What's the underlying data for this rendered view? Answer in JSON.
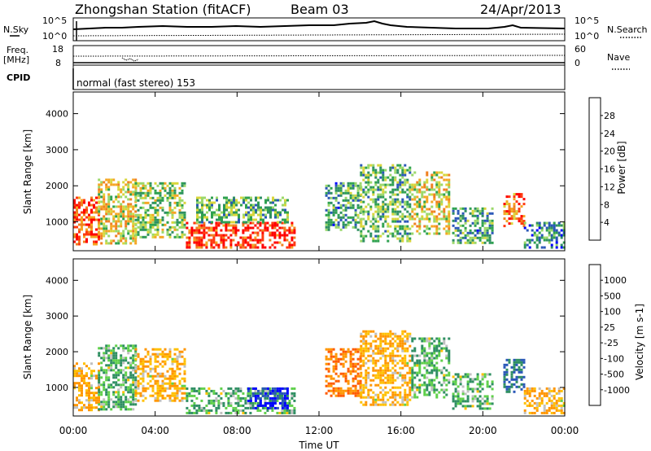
{
  "header": {
    "station": "Zhongshan Station (fitACF)",
    "beam": "Beam 03",
    "date": "24/Apr/2013"
  },
  "strip_panels": {
    "nsky": {
      "left_label": "N.Sky",
      "left_ticks": [
        "10^5",
        "10^0"
      ],
      "right_label": "N.Search",
      "right_ticks": [
        "10^5",
        "10^0"
      ]
    },
    "freq": {
      "left_label_1": "Freq.",
      "left_label_2": "[MHz]",
      "left_ticks": [
        "18",
        "8"
      ],
      "right_label": "Nave",
      "right_ticks": [
        "60",
        "0"
      ]
    },
    "cpid": {
      "label": "CPID",
      "text": "normal (fast stereo) 153"
    }
  },
  "colors": {
    "power_scale": [
      "#0000ff",
      "#2a57b8",
      "#2f8f62",
      "#2ea14f",
      "#9bd86a",
      "#d9d63b",
      "#f5a623",
      "#f08020",
      "#ff3a10",
      "#ff0000"
    ],
    "velocity_scale": [
      "#ff0000",
      "#ff5a00",
      "#ff9600",
      "#ffc000",
      "#c0c0c0",
      "#c0c0c0",
      "#5fd04a",
      "#2f8f62",
      "#2a57b8",
      "#0000ff"
    ]
  },
  "chart_data": [
    {
      "type": "heatmap",
      "panel": "power",
      "ylabel": "Slant Range [km]",
      "yticks": [
        1000,
        2000,
        3000,
        4000
      ],
      "ylim": [
        200,
        4600
      ],
      "colorbar_label": "Power [dB]",
      "colorbar_ticks": [
        4,
        8,
        12,
        16,
        20,
        24,
        28
      ],
      "colorbar_range": [
        0,
        32
      ],
      "grid": false,
      "value_regions": [
        {
          "t": [
            0.0,
            1.2
          ],
          "range": [
            400,
            1700
          ],
          "value": 26
        },
        {
          "t": [
            1.2,
            3.0
          ],
          "range": [
            400,
            2200
          ],
          "value": 18
        },
        {
          "t": [
            3.0,
            5.5
          ],
          "range": [
            600,
            2100
          ],
          "value": 14
        },
        {
          "t": [
            5.5,
            10.8
          ],
          "range": [
            300,
            1000
          ],
          "value": 28
        },
        {
          "t": [
            6.0,
            10.5
          ],
          "range": [
            1000,
            1700
          ],
          "value": 12
        },
        {
          "t": [
            12.3,
            14.0
          ],
          "range": [
            800,
            2100
          ],
          "value": 10
        },
        {
          "t": [
            14.0,
            16.5
          ],
          "range": [
            500,
            2600
          ],
          "value": 12
        },
        {
          "t": [
            16.5,
            18.3
          ],
          "range": [
            700,
            2400
          ],
          "value": 18
        },
        {
          "t": [
            18.5,
            20.5
          ],
          "range": [
            400,
            1400
          ],
          "value": 10
        },
        {
          "t": [
            21.0,
            22.0
          ],
          "range": [
            900,
            1800
          ],
          "value": 24
        },
        {
          "t": [
            22.0,
            24.0
          ],
          "range": [
            300,
            1000
          ],
          "value": 8
        }
      ]
    },
    {
      "type": "heatmap",
      "panel": "velocity",
      "ylabel": "Slant Range [km]",
      "xlabel": "Time UT",
      "xticks": [
        "00:00",
        "04:00",
        "08:00",
        "12:00",
        "16:00",
        "20:00",
        "00:00"
      ],
      "xlim": [
        0,
        24
      ],
      "yticks": [
        1000,
        2000,
        3000,
        4000
      ],
      "ylim": [
        200,
        4600
      ],
      "colorbar_label": "Velocity [m s-1]",
      "colorbar_ticks": [
        -1000,
        -500,
        -100,
        -25,
        25,
        100,
        500,
        1000
      ],
      "grid": false,
      "value_regions": [
        {
          "t": [
            0.0,
            1.2
          ],
          "range": [
            400,
            1700
          ],
          "value": -100
        },
        {
          "t": [
            1.2,
            3.0
          ],
          "range": [
            400,
            2200
          ],
          "value": 100
        },
        {
          "t": [
            3.0,
            5.5
          ],
          "range": [
            600,
            2100
          ],
          "value": -100
        },
        {
          "t": [
            5.5,
            10.8
          ],
          "range": [
            300,
            1000
          ],
          "value": 100
        },
        {
          "t": [
            8.5,
            10.5
          ],
          "range": [
            400,
            1000
          ],
          "value": 1000
        },
        {
          "t": [
            12.3,
            14.0
          ],
          "range": [
            800,
            2100
          ],
          "value": -500
        },
        {
          "t": [
            14.0,
            16.5
          ],
          "range": [
            500,
            2600
          ],
          "value": -100
        },
        {
          "t": [
            16.5,
            18.3
          ],
          "range": [
            700,
            2400
          ],
          "value": 100
        },
        {
          "t": [
            18.5,
            20.5
          ],
          "range": [
            400,
            1400
          ],
          "value": 100
        },
        {
          "t": [
            21.0,
            22.0
          ],
          "range": [
            900,
            1800
          ],
          "value": 500
        },
        {
          "t": [
            22.0,
            24.0
          ],
          "range": [
            300,
            1000
          ],
          "value": -100
        }
      ]
    }
  ]
}
